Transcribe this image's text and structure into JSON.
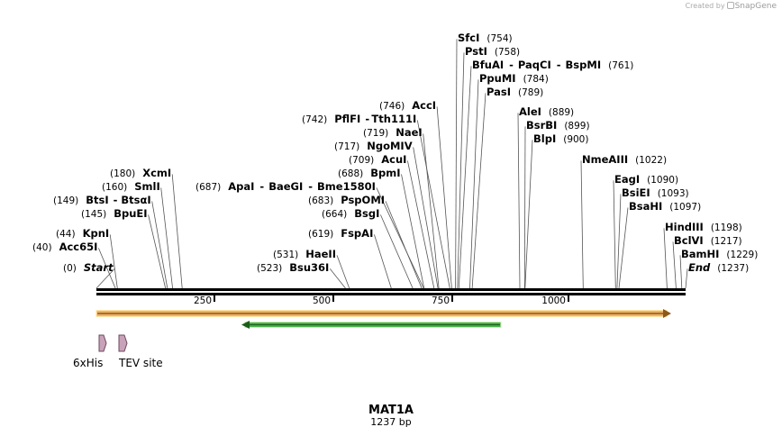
{
  "credit": {
    "prefix": "Created by",
    "brand": "SnapGene"
  },
  "map": {
    "title": "MAT1A",
    "length_label": "1237 bp",
    "length": 1237
  },
  "ticks": [
    "250",
    "500",
    "750",
    "1000"
  ],
  "tick_values": [
    250,
    500,
    750,
    1000
  ],
  "sites": [
    {
      "label": "Start",
      "pos_label": "(0)",
      "pos": 0,
      "italic": true,
      "side": "right"
    },
    {
      "label": "Acc65I",
      "pos_label": "(40)",
      "pos": 40,
      "side": "right"
    },
    {
      "label": "KpnI",
      "pos_label": "(44)",
      "pos": 44,
      "side": "right"
    },
    {
      "label": "BpuEI",
      "pos_label": "(145)",
      "pos": 145,
      "side": "right"
    },
    {
      "label": "BtsI",
      "label2": "BtsαI",
      "pos_label": "(149)",
      "pos": 149,
      "side": "right"
    },
    {
      "label": "SmlI",
      "pos_label": "(160)",
      "pos": 160,
      "side": "right"
    },
    {
      "label": "XcmI",
      "pos_label": "(180)",
      "pos": 180,
      "side": "right"
    },
    {
      "label": "Bsu36I",
      "pos_label": "(523)",
      "pos": 523,
      "side": "right"
    },
    {
      "label": "HaeII",
      "pos_label": "(531)",
      "pos": 531,
      "side": "right"
    },
    {
      "label": "FspAI",
      "pos_label": "(619)",
      "pos": 619,
      "side": "right"
    },
    {
      "label": "BsgI",
      "pos_label": "(664)",
      "pos": 664,
      "side": "right"
    },
    {
      "label": "PspOMI",
      "pos_label": "(683)",
      "pos": 683,
      "side": "right"
    },
    {
      "label": "ApaI",
      "label2": "BaeGI",
      "label3": "Bme1580I",
      "pos_label": "(687)",
      "pos": 687,
      "side": "right"
    },
    {
      "label": "BpmI",
      "pos_label": "(688)",
      "pos": 688,
      "side": "right"
    },
    {
      "label": "AcuI",
      "pos_label": "(709)",
      "pos": 709,
      "side": "right"
    },
    {
      "label": "NgoMIV",
      "pos_label": "(717)",
      "pos": 717,
      "side": "right"
    },
    {
      "label": "NaeI",
      "pos_label": "(719)",
      "pos": 719,
      "side": "right"
    },
    {
      "label": "PflFI",
      "label2": "Tth111I",
      "pos_label": "(742)",
      "pos": 742,
      "side": "right"
    },
    {
      "label": "AccI",
      "pos_label": "(746)",
      "pos": 746,
      "side": "right"
    },
    {
      "label": "SfcI",
      "pos_label": "(754)",
      "pos": 754,
      "side": "left"
    },
    {
      "label": "PstI",
      "pos_label": "(758)",
      "pos": 758,
      "side": "left"
    },
    {
      "label": "BfuAI",
      "label2": "PaqCI",
      "label3": "BspMI",
      "pos_label": "(761)",
      "pos": 761,
      "side": "left"
    },
    {
      "label": "PpuMI",
      "pos_label": "(784)",
      "pos": 784,
      "side": "left"
    },
    {
      "label": "PasI",
      "pos_label": "(789)",
      "pos": 789,
      "side": "left"
    },
    {
      "label": "AleI",
      "pos_label": "(889)",
      "pos": 889,
      "side": "left"
    },
    {
      "label": "BsrBI",
      "pos_label": "(899)",
      "pos": 899,
      "side": "left"
    },
    {
      "label": "BlpI",
      "pos_label": "(900)",
      "pos": 900,
      "side": "left"
    },
    {
      "label": "NmeAIII",
      "pos_label": "(1022)",
      "pos": 1022,
      "side": "left"
    },
    {
      "label": "EagI",
      "pos_label": "(1090)",
      "pos": 1090,
      "side": "left"
    },
    {
      "label": "BsiEI",
      "pos_label": "(1093)",
      "pos": 1093,
      "side": "left"
    },
    {
      "label": "BsaHI",
      "pos_label": "(1097)",
      "pos": 1097,
      "side": "left"
    },
    {
      "label": "HindIII",
      "pos_label": "(1198)",
      "pos": 1198,
      "side": "left"
    },
    {
      "label": "BclVI",
      "pos_label": "(1217)",
      "pos": 1217,
      "side": "left"
    },
    {
      "label": "BamHI",
      "pos_label": "(1229)",
      "pos": 1229,
      "side": "left"
    },
    {
      "label": "End",
      "pos_label": "(1237)",
      "pos": 1237,
      "italic": true,
      "side": "left"
    }
  ],
  "features": [
    {
      "name": "6xHis",
      "color": "#c8a2b9"
    },
    {
      "name": "TEV site",
      "color": "#c8a2b9"
    }
  ],
  "colors": {
    "orf_fill": "#f2b26a",
    "orf_outline": "#8a5a1a",
    "green_bar": "#4fb24f",
    "feature": "#c8a2b9",
    "line": "#000000",
    "site_line": "#555555"
  }
}
